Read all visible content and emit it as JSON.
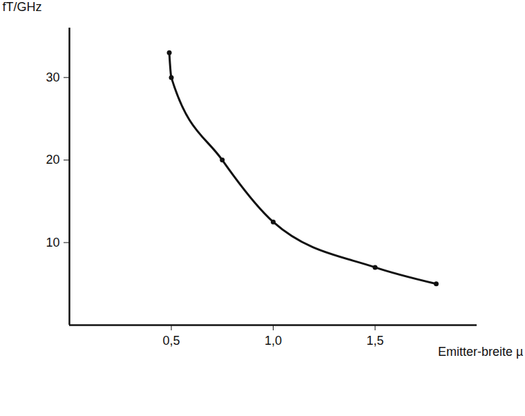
{
  "chart_data": {
    "type": "line",
    "x_label": "Emitter-breite µ",
    "y_label": "fT/GHz",
    "x": [
      0.49,
      0.5,
      0.75,
      1.0,
      1.5,
      1.8
    ],
    "values": [
      33,
      30,
      20,
      12.5,
      7,
      5
    ],
    "color": "#111111",
    "marker": "dot",
    "xlim": [
      0,
      2.0
    ],
    "ylim": [
      0,
      36
    ],
    "xticks": [
      {
        "value": 0.5,
        "label": "0,5"
      },
      {
        "value": 1.0,
        "label": "1,0"
      },
      {
        "value": 1.5,
        "label": "1,5"
      }
    ],
    "yticks": [
      10,
      20,
      30
    ],
    "grid": false
  }
}
